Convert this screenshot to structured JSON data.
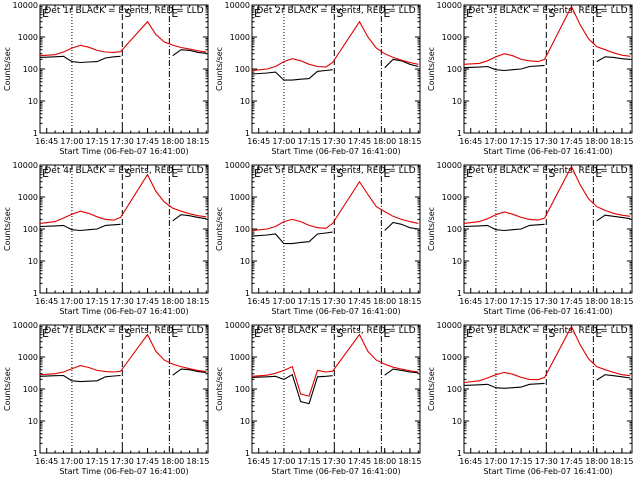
{
  "colors": {
    "events": "#000000",
    "lld": "#e00000",
    "frame": "#000000"
  },
  "time_axis": {
    "ticks": [
      "16:45",
      "17:00",
      "17:15",
      "17:30",
      "17:45",
      "18:00",
      "18:15"
    ],
    "xlabel": "Start Time (06-Feb-07 16:41:00)"
  },
  "y_axis": {
    "label": "Counts/sec",
    "ticks": [
      "1",
      "10",
      "100",
      "1000",
      "10000"
    ]
  },
  "markers": {
    "s": "S",
    "e": "E",
    "top_left": "E"
  },
  "chart_data": [
    {
      "type": "line",
      "title": "Det 1r BLACK = Events, RED = LLD",
      "yscale": "log",
      "ylim": [
        1,
        10000
      ],
      "x": [
        "16:41",
        "16:50",
        "16:55",
        "17:00",
        "17:05",
        "17:10",
        "17:15",
        "17:20",
        "17:25",
        "17:29",
        "17:45",
        "17:50",
        "17:55",
        "18:00",
        "18:05",
        "18:10",
        "18:15",
        "18:20"
      ],
      "series": [
        {
          "name": "Events",
          "values": [
            230,
            240,
            250,
            170,
            160,
            165,
            170,
            220,
            240,
            250,
            null,
            null,
            null,
            260,
            400,
            380,
            330,
            310
          ]
        },
        {
          "name": "LLD",
          "values": [
            260,
            280,
            340,
            450,
            550,
            480,
            380,
            340,
            330,
            350,
            3000,
            1200,
            700,
            560,
            470,
            420,
            370,
            340
          ]
        }
      ]
    },
    {
      "type": "line",
      "title": "Det 2r BLACK = Events, RED = LLD",
      "yscale": "log",
      "ylim": [
        1,
        10000
      ],
      "x": [
        "16:41",
        "16:50",
        "16:55",
        "17:00",
        "17:05",
        "17:10",
        "17:15",
        "17:20",
        "17:25",
        "17:29",
        "17:45",
        "17:50",
        "17:55",
        "18:00",
        "18:05",
        "18:10",
        "18:15",
        "18:20"
      ],
      "series": [
        {
          "name": "Events",
          "values": [
            70,
            75,
            80,
            45,
            45,
            48,
            50,
            85,
            90,
            95,
            null,
            null,
            null,
            110,
            200,
            180,
            140,
            120
          ]
        },
        {
          "name": "LLD",
          "values": [
            90,
            100,
            120,
            170,
            210,
            180,
            140,
            120,
            115,
            160,
            3000,
            1000,
            450,
            300,
            230,
            190,
            160,
            140
          ]
        }
      ]
    },
    {
      "type": "line",
      "title": "Det 3r BLACK = Events, RED = LLD",
      "yscale": "log",
      "ylim": [
        1,
        10000
      ],
      "x": [
        "16:41",
        "16:50",
        "16:55",
        "17:00",
        "17:05",
        "17:10",
        "17:15",
        "17:20",
        "17:25",
        "17:29",
        "17:45",
        "17:50",
        "17:55",
        "18:00",
        "18:05",
        "18:10",
        "18:15",
        "18:20"
      ],
      "series": [
        {
          "name": "Events",
          "values": [
            110,
            115,
            120,
            95,
            90,
            95,
            100,
            120,
            125,
            130,
            null,
            null,
            null,
            170,
            240,
            230,
            210,
            200
          ]
        },
        {
          "name": "LLD",
          "values": [
            140,
            150,
            180,
            240,
            300,
            260,
            200,
            180,
            170,
            200,
            9000,
            2500,
            900,
            500,
            400,
            320,
            270,
            250
          ]
        }
      ]
    },
    {
      "type": "line",
      "title": "Det 4r BLACK = Events, RED = LLD",
      "yscale": "log",
      "ylim": [
        1,
        10000
      ],
      "x": [
        "16:41",
        "16:50",
        "16:55",
        "17:00",
        "17:05",
        "17:10",
        "17:15",
        "17:20",
        "17:25",
        "17:29",
        "17:45",
        "17:50",
        "17:55",
        "18:00",
        "18:05",
        "18:10",
        "18:15",
        "18:20"
      ],
      "series": [
        {
          "name": "Events",
          "values": [
            120,
            125,
            130,
            95,
            90,
            95,
            100,
            130,
            135,
            140,
            null,
            null,
            null,
            180,
            280,
            260,
            230,
            210
          ]
        },
        {
          "name": "LLD",
          "values": [
            150,
            170,
            220,
            290,
            360,
            310,
            240,
            200,
            190,
            230,
            5000,
            1500,
            700,
            450,
            360,
            300,
            260,
            240
          ]
        }
      ]
    },
    {
      "type": "line",
      "title": "Det 5r BLACK = Events, RED = LLD",
      "yscale": "log",
      "ylim": [
        1,
        10000
      ],
      "x": [
        "16:41",
        "16:50",
        "16:55",
        "17:00",
        "17:05",
        "17:10",
        "17:15",
        "17:20",
        "17:25",
        "17:29",
        "17:45",
        "17:50",
        "17:55",
        "18:00",
        "18:05",
        "18:10",
        "18:15",
        "18:20"
      ],
      "series": [
        {
          "name": "Events",
          "values": [
            60,
            65,
            70,
            35,
            35,
            38,
            40,
            70,
            75,
            80,
            null,
            null,
            null,
            90,
            160,
            140,
            110,
            100
          ]
        },
        {
          "name": "LLD",
          "values": [
            90,
            100,
            120,
            170,
            200,
            170,
            130,
            110,
            105,
            150,
            3000,
            1200,
            500,
            350,
            250,
            200,
            170,
            150
          ]
        }
      ]
    },
    {
      "type": "line",
      "title": "Det 6r BLACK = Events, RED = LLD",
      "yscale": "log",
      "ylim": [
        1,
        10000
      ],
      "x": [
        "16:41",
        "16:50",
        "16:55",
        "17:00",
        "17:05",
        "17:10",
        "17:15",
        "17:20",
        "17:25",
        "17:29",
        "17:45",
        "17:50",
        "17:55",
        "18:00",
        "18:05",
        "18:10",
        "18:15",
        "18:20"
      ],
      "series": [
        {
          "name": "Events",
          "values": [
            120,
            125,
            130,
            95,
            90,
            95,
            100,
            130,
            135,
            140,
            null,
            null,
            null,
            180,
            270,
            250,
            230,
            210
          ]
        },
        {
          "name": "LLD",
          "values": [
            150,
            170,
            210,
            280,
            340,
            290,
            230,
            200,
            190,
            220,
            9000,
            2500,
            900,
            500,
            380,
            310,
            270,
            250
          ]
        }
      ]
    },
    {
      "type": "line",
      "title": "Det 7r BLACK = Events, RED = LLD",
      "yscale": "log",
      "ylim": [
        1,
        10000
      ],
      "x": [
        "16:41",
        "16:50",
        "16:55",
        "17:00",
        "17:05",
        "17:10",
        "17:15",
        "17:20",
        "17:25",
        "17:29",
        "17:45",
        "17:50",
        "17:55",
        "18:00",
        "18:05",
        "18:10",
        "18:15",
        "18:20"
      ],
      "series": [
        {
          "name": "Events",
          "values": [
            250,
            260,
            265,
            180,
            170,
            175,
            180,
            240,
            255,
            265,
            null,
            null,
            null,
            270,
            420,
            400,
            350,
            330
          ]
        },
        {
          "name": "LLD",
          "values": [
            280,
            300,
            340,
            430,
            540,
            470,
            380,
            350,
            340,
            360,
            5000,
            1500,
            800,
            600,
            500,
            430,
            380,
            350
          ]
        }
      ]
    },
    {
      "type": "line",
      "title": "Det 8r BLACK = Events, RED = LLD",
      "yscale": "log",
      "ylim": [
        1,
        10000
      ],
      "x": [
        "16:41",
        "16:50",
        "16:55",
        "17:00",
        "17:05",
        "17:10",
        "17:15",
        "17:20",
        "17:25",
        "17:29",
        "17:45",
        "17:50",
        "17:55",
        "18:00",
        "18:05",
        "18:10",
        "18:15",
        "18:20"
      ],
      "series": [
        {
          "name": "Events",
          "values": [
            230,
            240,
            250,
            200,
            280,
            40,
            35,
            240,
            250,
            260,
            null,
            null,
            null,
            270,
            420,
            380,
            340,
            320
          ]
        },
        {
          "name": "LLD",
          "values": [
            250,
            270,
            310,
            380,
            500,
            70,
            60,
            380,
            340,
            360,
            5000,
            1500,
            800,
            600,
            480,
            420,
            370,
            340
          ]
        }
      ]
    },
    {
      "type": "line",
      "title": "Det 9r BLACK = Events, RED = LLD",
      "yscale": "log",
      "ylim": [
        1,
        10000
      ],
      "x": [
        "16:41",
        "16:50",
        "16:55",
        "17:00",
        "17:05",
        "17:10",
        "17:15",
        "17:20",
        "17:25",
        "17:29",
        "17:45",
        "17:50",
        "17:55",
        "18:00",
        "18:05",
        "18:10",
        "18:15",
        "18:20"
      ],
      "series": [
        {
          "name": "Events",
          "values": [
            130,
            135,
            140,
            110,
            105,
            110,
            115,
            140,
            145,
            150,
            null,
            null,
            null,
            190,
            280,
            260,
            240,
            220
          ]
        },
        {
          "name": "LLD",
          "values": [
            160,
            180,
            220,
            280,
            330,
            290,
            230,
            200,
            195,
            230,
            9000,
            2500,
            900,
            500,
            400,
            330,
            280,
            260
          ]
        }
      ]
    }
  ]
}
